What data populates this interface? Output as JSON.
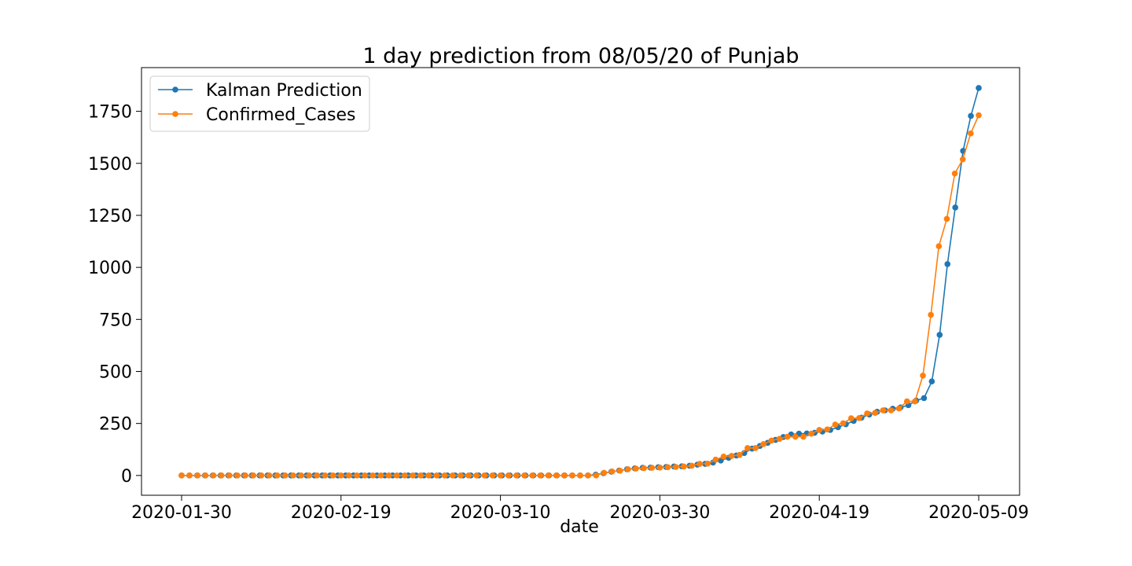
{
  "chart_data": {
    "type": "line",
    "title": "1 day prediction from 08/05/20 of Punjab",
    "xlabel": "date",
    "ylabel": "",
    "x_start": "2020-01-30",
    "x_end": "2020-05-09",
    "xticks": [
      "2020-01-30",
      "2020-02-19",
      "2020-03-10",
      "2020-03-30",
      "2020-04-19",
      "2020-05-09"
    ],
    "yticks": [
      0,
      250,
      500,
      750,
      1000,
      1250,
      1500,
      1750
    ],
    "ylim": [
      -95,
      1960
    ],
    "grid": false,
    "legend_position": "top-left",
    "series": [
      {
        "name": "Kalman Prediction",
        "color": "#1f77b4",
        "marker": "circle",
        "values": [
          0,
          0,
          0,
          0,
          0,
          0,
          0,
          0,
          0,
          0,
          0,
          0,
          0,
          0,
          0,
          0,
          0,
          0,
          0,
          0,
          0,
          0,
          0,
          0,
          0,
          0,
          0,
          0,
          0,
          0,
          0,
          0,
          0,
          0,
          0,
          0,
          0,
          0,
          0,
          0,
          0,
          0,
          0,
          0,
          0,
          0,
          0,
          0,
          0,
          0,
          0,
          0,
          0,
          4,
          11,
          18,
          24,
          30,
          34,
          37,
          38,
          40,
          41,
          43,
          44,
          47,
          52,
          56,
          62,
          72,
          85,
          96,
          108,
          129,
          142,
          157,
          171,
          185,
          197,
          201,
          202,
          205,
          211,
          219,
          232,
          246,
          262,
          278,
          293,
          306,
          313,
          321,
          327,
          338,
          360,
          372,
          452,
          676,
          1016,
          1288,
          1560,
          1728,
          1862
        ]
      },
      {
        "name": "Confirmed_Cases",
        "color": "#ff7f0e",
        "marker": "circle",
        "values": [
          0,
          0,
          0,
          0,
          0,
          0,
          0,
          0,
          0,
          0,
          0,
          0,
          0,
          0,
          0,
          0,
          0,
          0,
          0,
          0,
          0,
          0,
          0,
          0,
          0,
          0,
          0,
          0,
          0,
          0,
          0,
          0,
          0,
          0,
          0,
          0,
          0,
          0,
          0,
          0,
          0,
          0,
          0,
          0,
          0,
          0,
          0,
          0,
          0,
          0,
          0,
          0,
          0,
          13,
          19,
          23,
          30,
          33,
          35,
          37,
          38,
          40,
          41,
          43,
          47,
          56,
          57,
          76,
          91,
          94,
          99,
          132,
          132,
          151,
          168,
          176,
          186,
          186,
          186,
          201,
          219,
          221,
          245,
          251,
          275,
          276,
          298,
          301,
          313,
          313,
          322,
          356,
          356,
          480,
          772,
          1102,
          1233,
          1451,
          1519,
          1644,
          1731
        ]
      }
    ]
  }
}
